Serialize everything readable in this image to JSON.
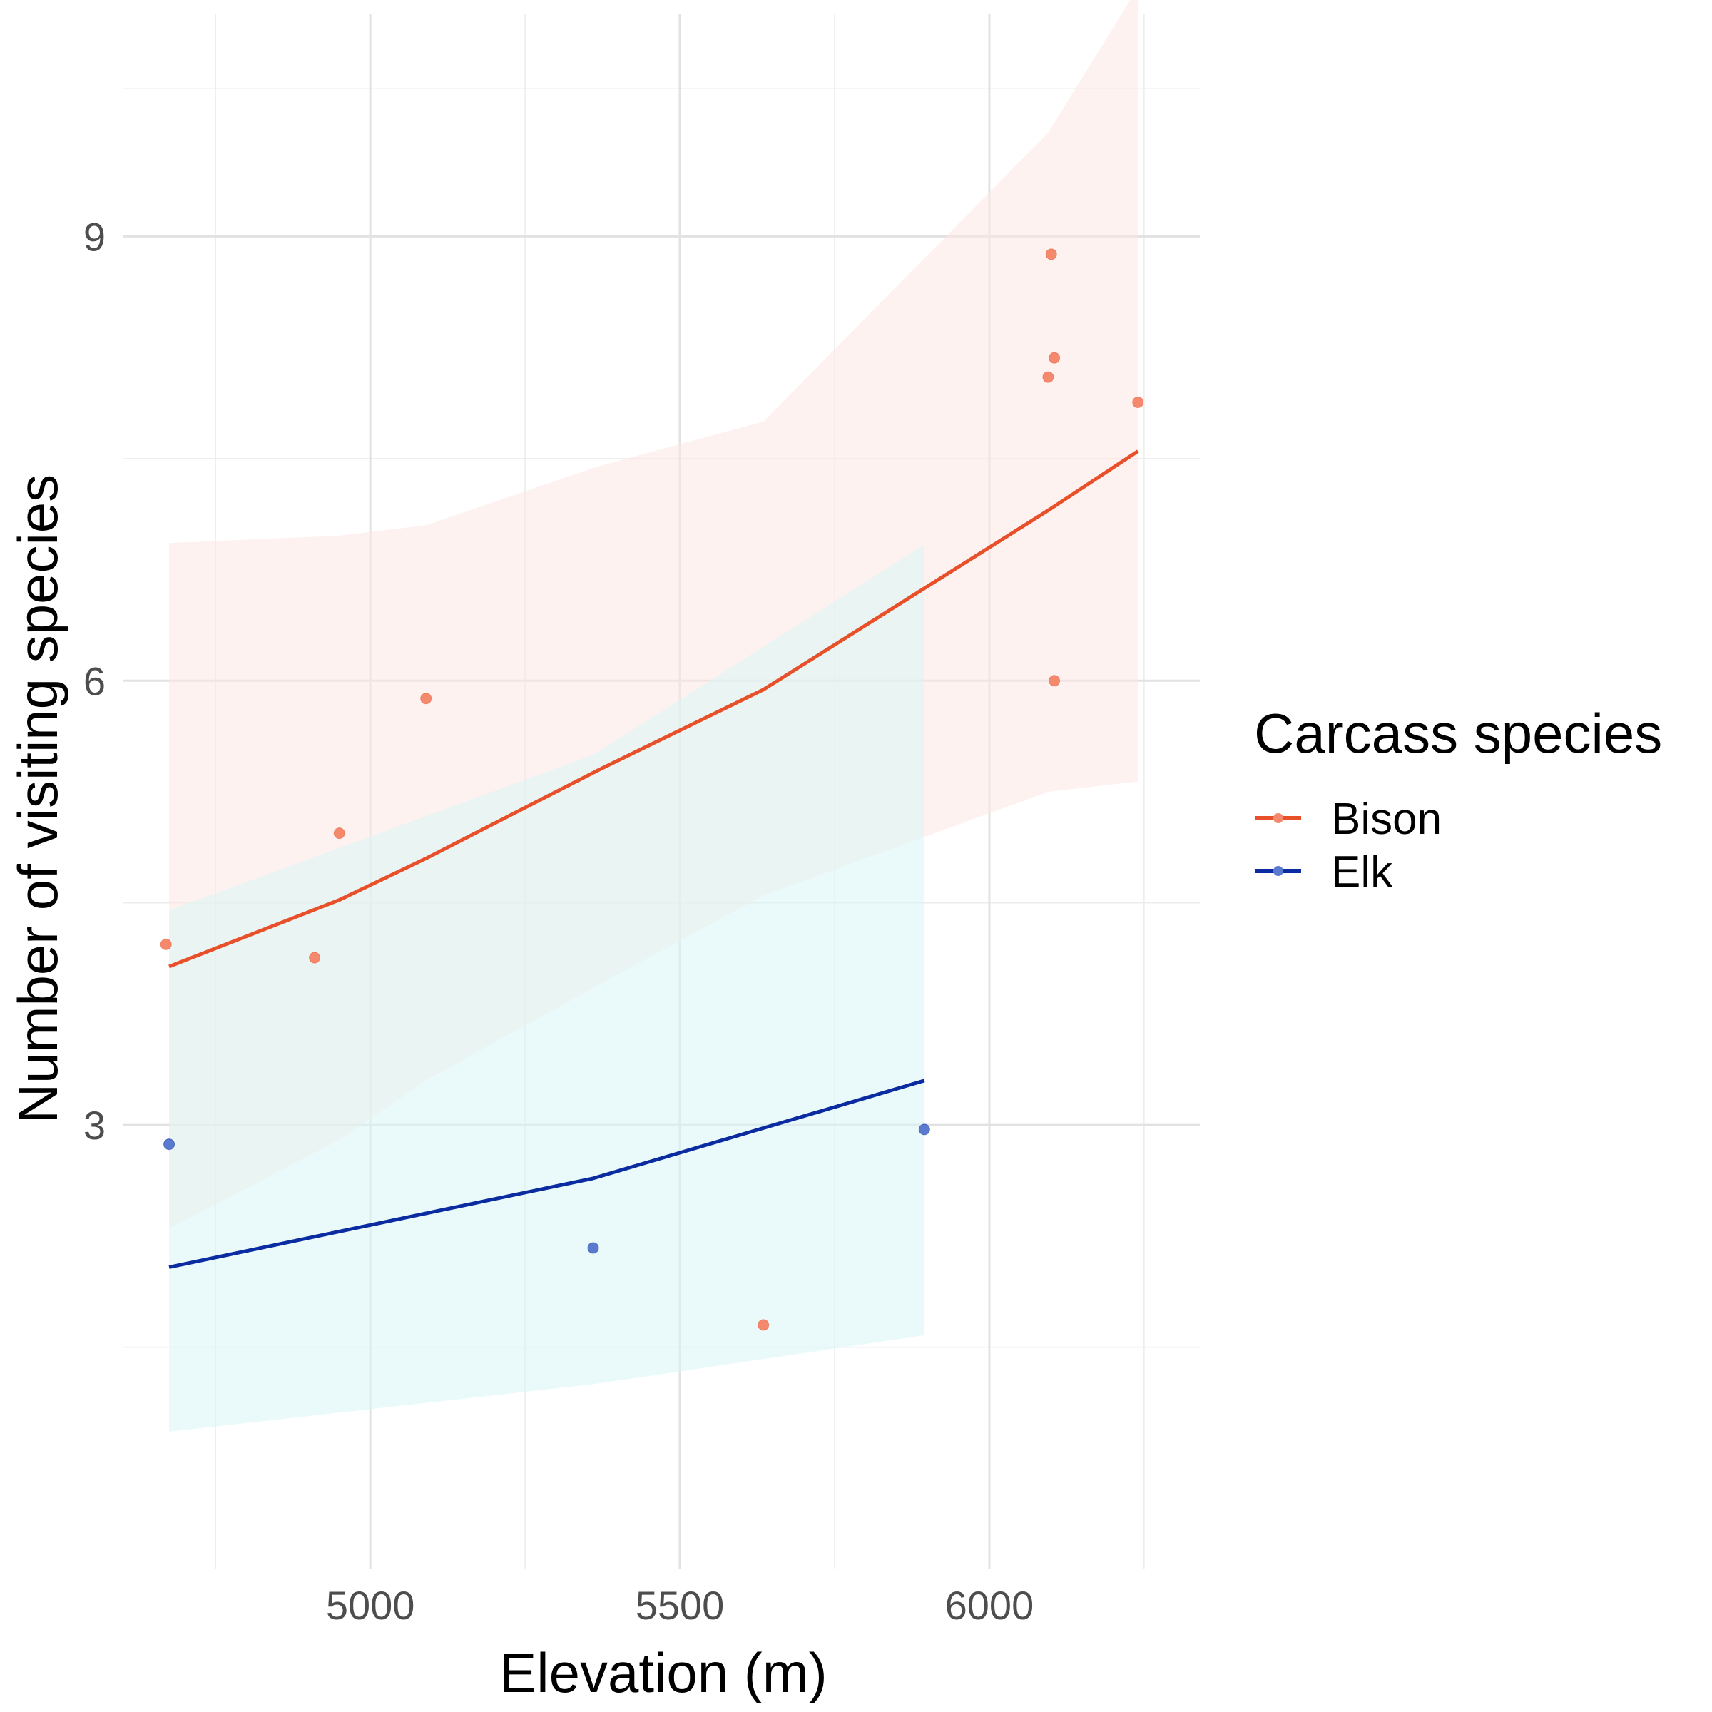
{
  "chart_data": {
    "type": "scatter",
    "xlabel": "Elevation (m)",
    "ylabel": "Number of visiting species",
    "xlim": [
      4600,
      6340
    ],
    "ylim": [
      0,
      10.5
    ],
    "x_ticks": [
      5000,
      5500,
      6000
    ],
    "x_minor_ticks": [
      4750,
      5250,
      5750,
      6250
    ],
    "y_ticks": [
      3,
      6,
      9
    ],
    "y_minor_ticks": [
      1.5,
      4.5,
      7.5,
      10
    ],
    "grid": true,
    "legend": {
      "title": "Carcass species",
      "position": "right"
    },
    "series": [
      {
        "name": "Bison",
        "color": "#e8502a",
        "point_color": "#f4896d",
        "ribbon_color": "#fde8e3",
        "points": [
          {
            "x": 4670,
            "y": 4.22
          },
          {
            "x": 4910,
            "y": 4.13
          },
          {
            "x": 4950,
            "y": 4.97
          },
          {
            "x": 5090,
            "y": 5.88
          },
          {
            "x": 5635,
            "y": 1.65
          },
          {
            "x": 6095,
            "y": 8.05
          },
          {
            "x": 6100,
            "y": 8.88
          },
          {
            "x": 6105,
            "y": 8.18
          },
          {
            "x": 6105,
            "y": 6.0
          },
          {
            "x": 6240,
            "y": 7.88
          }
        ],
        "fit": {
          "x": [
            4675,
            4950,
            5090,
            5370,
            5635,
            6095,
            6240
          ],
          "y": [
            4.07,
            4.52,
            4.8,
            5.4,
            5.94,
            7.15,
            7.55
          ],
          "lower": [
            2.3,
            2.9,
            3.3,
            3.95,
            4.55,
            5.25,
            5.32
          ],
          "upper": [
            6.93,
            6.98,
            7.05,
            7.45,
            7.75,
            9.7,
            10.68
          ]
        }
      },
      {
        "name": "Elk",
        "color": "#0a2ca0",
        "point_color": "#5a7ad0",
        "ribbon_color": "#d8f6f6",
        "points": [
          {
            "x": 4675,
            "y": 2.87
          },
          {
            "x": 5360,
            "y": 2.17
          },
          {
            "x": 5895,
            "y": 2.97
          }
        ],
        "fit": {
          "x": [
            4675,
            5360,
            5895
          ],
          "y": [
            2.04,
            2.64,
            3.3
          ],
          "lower": [
            0.93,
            1.25,
            1.58
          ],
          "upper": [
            4.45,
            5.5,
            6.92
          ]
        }
      }
    ]
  }
}
